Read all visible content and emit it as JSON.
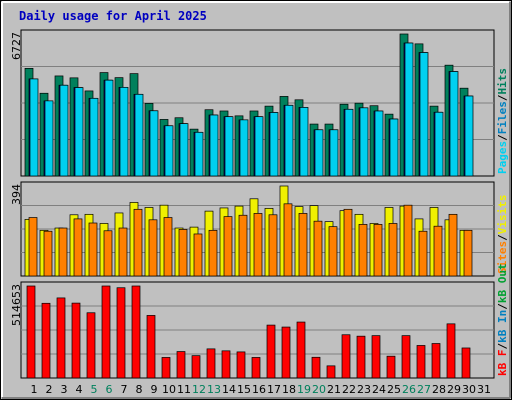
{
  "chart_data": {
    "title": "Daily usage for April 2025",
    "type": "bar",
    "days": [
      "1",
      "2",
      "3",
      "4",
      "5",
      "6",
      "7",
      "8",
      "9",
      "10",
      "11",
      "12",
      "13",
      "14",
      "15",
      "16",
      "17",
      "18",
      "19",
      "20",
      "21",
      "22",
      "23",
      "24",
      "25",
      "26",
      "27",
      "28",
      "29",
      "30",
      "31"
    ],
    "weekend_days": [
      "5",
      "6",
      "12",
      "13",
      "19",
      "20",
      "26",
      "27"
    ],
    "colors": {
      "title": "#0000c0",
      "hits": "#00805c",
      "files": "#00d0f0",
      "pages": "#00d0f0",
      "visits": "#f0f000",
      "sites": "#ff8000",
      "kbf": "#ff0000",
      "kbin": "#0080c0",
      "kbout": "#00a030",
      "weekend_label": "#00805c",
      "plot_bg": "#c0c0c0",
      "frame_bg": "#c0c0c0"
    },
    "panels": [
      {
        "id": "hits-files-pages",
        "ymax_label": "6727",
        "ymax": 6727,
        "side_label": [
          {
            "text": "Pages",
            "color": "#00d0f0"
          },
          {
            "text": "/",
            "color": "#000000"
          },
          {
            "text": "Files",
            "color": "#0080c0"
          },
          {
            "text": "/",
            "color": "#000000"
          },
          {
            "text": "Hits",
            "color": "#00805c"
          }
        ],
        "series": [
          {
            "name": "Hits",
            "color": "#00805c",
            "values": [
              5100,
              3920,
              4740,
              4650,
              4030,
              4900,
              4660,
              4850,
              3440,
              2680,
              2760,
              2220,
              3140,
              3080,
              2850,
              3080,
              3310,
              3770,
              3610,
              2460,
              2460,
              3400,
              3450,
              3330,
              2930,
              6740,
              6260,
              3310,
              5250,
              4160,
              null
            ]
          },
          {
            "name": "Files",
            "color": "#0000c0",
            "values": [
              4600,
              3560,
              4300,
              4190,
              3680,
              4540,
              4200,
              3870,
              3090,
              2380,
              2480,
              2070,
              2890,
              2810,
              2660,
              2810,
              3010,
              3350,
              3250,
              2190,
              2190,
              3160,
              3230,
              3080,
              2700,
              6300,
              5850,
              3020,
              4950,
              3790,
              null
            ]
          },
          {
            "name": "Pages",
            "color": "#00d0f0",
            "values": [
              4600,
              3560,
              4300,
              4190,
              3680,
              4540,
              4200,
              3870,
              3090,
              2380,
              2480,
              2070,
              2890,
              2810,
              2660,
              2810,
              3010,
              3350,
              3250,
              2190,
              2190,
              3160,
              3230,
              3080,
              2700,
              6300,
              5850,
              3020,
              4950,
              3790,
              null
            ]
          }
        ]
      },
      {
        "id": "visits-sites",
        "ymax_label": "394",
        "ymax": 394,
        "side_label": [
          {
            "text": "Sites",
            "color": "#ff8000"
          },
          {
            "text": "/",
            "color": "#000000"
          },
          {
            "text": "Visits",
            "color": "#f0f000"
          }
        ],
        "series": [
          {
            "name": "Visits",
            "color": "#f0f000",
            "values": [
              248,
              200,
              210,
              268,
              270,
              230,
              276,
              322,
              300,
              310,
              210,
              214,
              284,
              298,
              306,
              338,
              296,
              394,
              304,
              308,
              238,
              286,
              270,
              230,
              300,
              306,
              250,
              300,
              246,
              200,
              null
            ]
          },
          {
            "name": "Sites",
            "color": "#ff8000",
            "values": [
              256,
              196,
              210,
              250,
              232,
              198,
              210,
              292,
              246,
              256,
              204,
              184,
              200,
              260,
              266,
              274,
              268,
              316,
              274,
              240,
              216,
              292,
              226,
              226,
              230,
              310,
              196,
              218,
              270,
              200,
              null
            ]
          }
        ]
      },
      {
        "id": "kbytes",
        "ymax_label": "514653",
        "ymax": 514653,
        "side_label": [
          {
            "text": "kB F",
            "color": "#ff0000"
          },
          {
            "text": "/",
            "color": "#000000"
          },
          {
            "text": "kB In",
            "color": "#0080c0"
          },
          {
            "text": "/",
            "color": "#000000"
          },
          {
            "text": "kB Out",
            "color": "#00a030"
          }
        ],
        "series": [
          {
            "name": "kB F",
            "color": "#ff0000",
            "values": [
              515000,
              418000,
              448000,
              419000,
              365000,
              518000,
              505000,
              518000,
              350000,
              115000,
              148000,
              125000,
              163000,
              152000,
              146000,
              115000,
              296000,
              285000,
              313000,
              116000,
              68000,
              242000,
              234000,
              237000,
              122000,
              237000,
              182000,
              193000,
              303000,
              168000,
              null
            ]
          }
        ]
      }
    ]
  }
}
